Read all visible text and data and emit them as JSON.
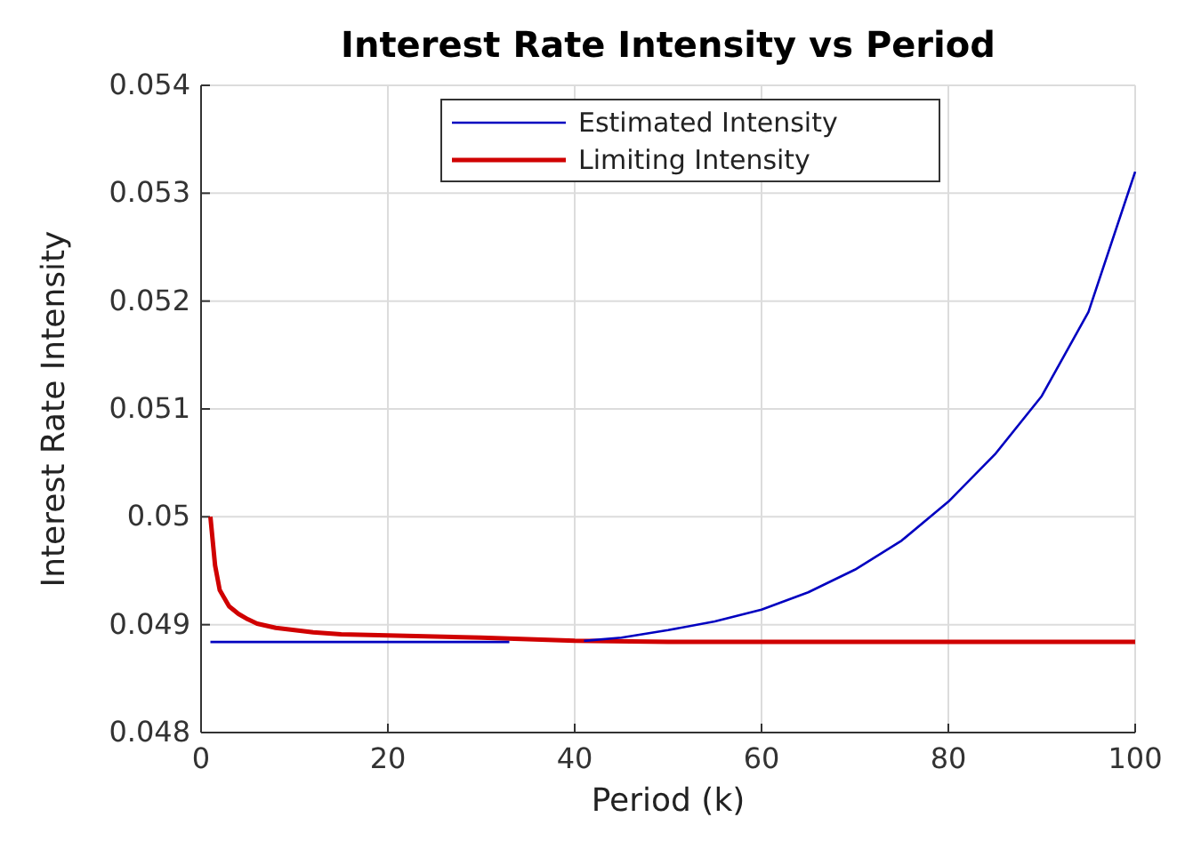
{
  "chart_data": {
    "type": "line",
    "title": "Interest Rate Intensity vs Period",
    "xlabel": "Period (k)",
    "ylabel": "Interest Rate Intensity",
    "xlim": [
      0,
      100
    ],
    "xticks": [
      0,
      20,
      40,
      60,
      80,
      100
    ],
    "ylim": [
      0.048,
      0.054
    ],
    "yticks": [
      0.048,
      0.049,
      0.05,
      0.051,
      0.052,
      0.053,
      0.054
    ],
    "grid": true,
    "legend": "top",
    "series": [
      {
        "name": "Estimated Intensity",
        "color": "#0000c0",
        "x": [
          1,
          10,
          20,
          33,
          37,
          41,
          45,
          50,
          55,
          60,
          65,
          70,
          75,
          80,
          85,
          90,
          95,
          100
        ],
        "values": [
          0.04884,
          0.04884,
          0.04884,
          0.04884,
          null,
          0.04885,
          0.04888,
          0.04895,
          0.04903,
          0.04914,
          0.0493,
          0.04951,
          0.04978,
          0.05014,
          0.05058,
          0.05112,
          0.0519,
          0.0532
        ]
      },
      {
        "name": "Limiting Intensity",
        "color": "#d00000",
        "x": [
          1,
          1.5,
          2,
          3,
          4,
          5,
          6,
          8,
          10,
          12,
          15,
          20,
          30,
          40,
          50,
          60,
          70,
          80,
          90,
          100
        ],
        "values": [
          0.05,
          0.04955,
          0.04932,
          0.04917,
          0.0491,
          0.04905,
          0.04901,
          0.04897,
          0.04895,
          0.04893,
          0.04891,
          0.0489,
          0.04888,
          0.04885,
          0.04884,
          0.04884,
          0.04884,
          0.04884,
          0.04884,
          0.04884
        ]
      }
    ]
  }
}
